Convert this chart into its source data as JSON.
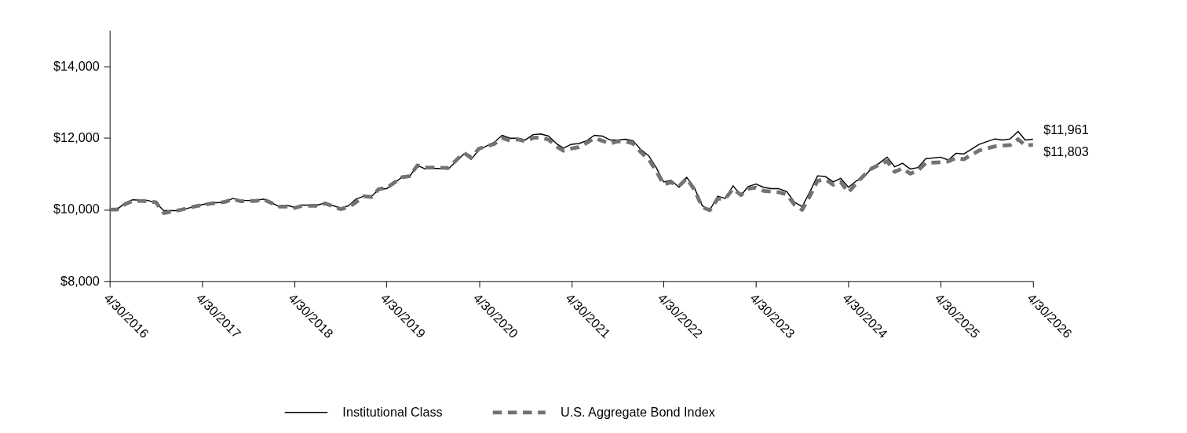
{
  "chart_data": {
    "type": "line",
    "x": [
      "2016-04",
      "2016-05",
      "2016-06",
      "2016-07",
      "2016-09",
      "2016-10",
      "2016-11",
      "2017-01",
      "2017-03",
      "2017-05",
      "2017-07",
      "2017-08",
      "2017-09",
      "2017-11",
      "2017-12",
      "2018-02",
      "2018-03",
      "2018-04",
      "2018-05",
      "2018-07",
      "2018-08",
      "2018-10",
      "2018-11",
      "2018-12",
      "2019-01",
      "2019-02",
      "2019-03",
      "2019-04",
      "2019-06",
      "2019-07",
      "2019-08",
      "2019-09",
      "2019-10",
      "2019-12",
      "2020-02",
      "2020-03",
      "2020-04",
      "2020-06",
      "2020-07",
      "2020-08",
      "2020-09",
      "2020-10",
      "2020-11",
      "2020-12",
      "2021-01",
      "2021-02",
      "2021-03",
      "2021-04",
      "2021-05",
      "2021-06",
      "2021-07",
      "2021-08",
      "2021-09",
      "2021-10",
      "2021-11",
      "2021-12",
      "2022-01",
      "2022-02",
      "2022-03",
      "2022-04",
      "2022-05",
      "2022-06",
      "2022-07",
      "2022-08",
      "2022-09",
      "2022-10",
      "2022-11",
      "2022-12",
      "2023-01",
      "2023-02",
      "2023-03",
      "2023-04",
      "2023-05",
      "2023-06",
      "2023-07",
      "2023-08",
      "2023-09",
      "2023-10",
      "2023-11",
      "2023-12",
      "2024-01",
      "2024-02",
      "2024-03",
      "2024-04",
      "2024-05",
      "2024-06",
      "2024-07",
      "2024-08",
      "2024-09",
      "2024-10",
      "2024-11",
      "2024-12",
      "2025-01",
      "2025-02",
      "2025-04",
      "2025-05",
      "2025-06",
      "2025-07",
      "2025-09",
      "2025-11",
      "2025-12",
      "2026-01",
      "2026-02",
      "2026-03",
      "2026-04"
    ],
    "series": [
      {
        "name": "Institutional Class",
        "color": "#000000",
        "line_style": "solid",
        "values": [
          10000,
          10010,
          10180,
          10270,
          10250,
          10180,
          9970,
          9970,
          10080,
          10180,
          10200,
          10310,
          10250,
          10250,
          10290,
          10080,
          10120,
          10060,
          10120,
          10120,
          10180,
          10040,
          10100,
          10290,
          10370,
          10370,
          10560,
          10580,
          10900,
          10920,
          11230,
          11130,
          11150,
          11130,
          11550,
          11400,
          11670,
          11880,
          12070,
          11990,
          11990,
          11940,
          12090,
          12110,
          12050,
          11840,
          11710,
          11820,
          11840,
          11920,
          12070,
          12050,
          11940,
          11940,
          11960,
          11920,
          11670,
          11500,
          11190,
          10770,
          10810,
          10620,
          10900,
          10600,
          10100,
          9990,
          10370,
          10310,
          10660,
          10390,
          10640,
          10710,
          10620,
          10580,
          10580,
          10500,
          10200,
          10080,
          10500,
          10940,
          10920,
          10770,
          10870,
          10620,
          10790,
          10900,
          11150,
          11290,
          11460,
          11190,
          11290,
          11130,
          11170,
          11420,
          11460,
          11380,
          11570,
          11550,
          11820,
          11970,
          11940,
          11970,
          12180,
          11940,
          11961
        ]
      },
      {
        "name": "U.S. Aggregate Bond Index",
        "color": "#737373",
        "line_style": "dashed",
        "values": [
          10000,
          10000,
          10150,
          10240,
          10230,
          10200,
          9900,
          9980,
          10080,
          10160,
          10210,
          10290,
          10230,
          10240,
          10280,
          10080,
          10080,
          10040,
          10100,
          10100,
          10170,
          10010,
          10060,
          10200,
          10370,
          10350,
          10570,
          10600,
          10900,
          10930,
          11230,
          11170,
          11170,
          11160,
          11580,
          11450,
          11700,
          11830,
          12000,
          11920,
          11960,
          11900,
          12000,
          12010,
          11950,
          11760,
          11640,
          11700,
          11740,
          11860,
          11990,
          11920,
          11840,
          11900,
          11900,
          11840,
          11600,
          11400,
          11100,
          10700,
          10760,
          10650,
          10870,
          10550,
          10060,
          9980,
          10300,
          10300,
          10580,
          10400,
          10580,
          10610,
          10520,
          10500,
          10480,
          10420,
          10130,
          9990,
          10380,
          10800,
          10840,
          10690,
          10770,
          10480,
          10720,
          10950,
          11140,
          11250,
          11350,
          11050,
          11150,
          11000,
          11080,
          11300,
          11320,
          11340,
          11440,
          11400,
          11650,
          11760,
          11780,
          11800,
          11960,
          11790,
          11803
        ]
      }
    ],
    "xlim": [
      "2016-04",
      "2026-04"
    ],
    "xticks": [
      {
        "value": "2016-04",
        "label": "4/30/2016"
      },
      {
        "value": "2017-04",
        "label": "4/30/2017"
      },
      {
        "value": "2018-04",
        "label": "4/30/2018"
      },
      {
        "value": "2019-04",
        "label": "4/30/2019"
      },
      {
        "value": "2020-04",
        "label": "4/30/2020"
      },
      {
        "value": "2021-04",
        "label": "4/30/2021"
      },
      {
        "value": "2022-04",
        "label": "4/30/2022"
      },
      {
        "value": "2023-04",
        "label": "4/30/2023"
      },
      {
        "value": "2024-04",
        "label": "4/30/2024"
      },
      {
        "value": "2025-04",
        "label": "4/30/2025"
      },
      {
        "value": "2026-04",
        "label": "4/30/2026"
      }
    ],
    "ylim": [
      8000,
      15000
    ],
    "yticks": [
      {
        "value": 8000,
        "label": "$8,000"
      },
      {
        "value": 10000,
        "label": "$10,000"
      },
      {
        "value": 12000,
        "label": "$12,000"
      },
      {
        "value": 14000,
        "label": "$14,000"
      }
    ],
    "annotations": [
      {
        "text": "$11,961",
        "x": "2026-04",
        "y": 11961
      },
      {
        "text": "$11,803",
        "x": "2026-04",
        "y": 11803
      }
    ],
    "grid": false,
    "legend": "bottom"
  }
}
